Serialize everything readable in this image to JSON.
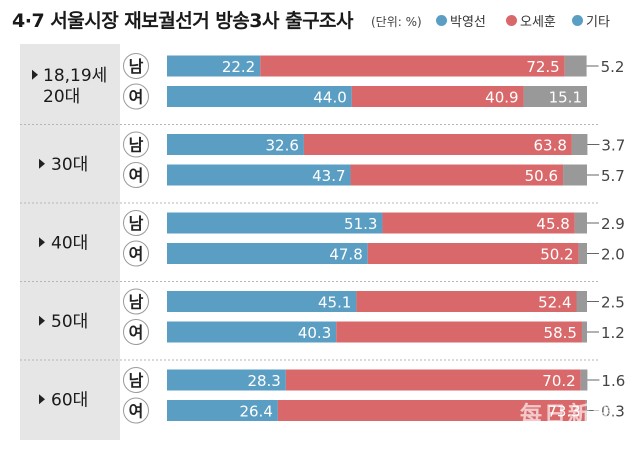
{
  "title": "4·7 서울시장 재보궐선거 방송3사 출구조사",
  "unit": "(단위: %)",
  "legend": [
    {
      "label": "박영선",
      "color": "#5a9ec4"
    },
    {
      "label": "오세훈",
      "color": "#d9686a"
    },
    {
      "label": "기타",
      "color": "#5a9ec4"
    }
  ],
  "watermark": {
    "name": "每日新聞",
    "url": "www.imaeil.com"
  },
  "chart_data": {
    "type": "bar",
    "stacked": true,
    "orientation": "horizontal",
    "xlim": [
      0,
      100
    ],
    "colors": {
      "park": "#5a9ec4",
      "oh": "#d9686a",
      "other": "#999999"
    },
    "series_names": [
      "박영선",
      "오세훈",
      "기타"
    ],
    "groups": [
      {
        "label_lines": [
          "18,19세",
          "20대"
        ],
        "rows": [
          {
            "gender": "남",
            "values": [
              22.2,
              72.5,
              5.2
            ]
          },
          {
            "gender": "여",
            "values": [
              44.0,
              40.9,
              15.1
            ]
          }
        ]
      },
      {
        "label_lines": [
          "30대"
        ],
        "rows": [
          {
            "gender": "남",
            "values": [
              32.6,
              63.8,
              3.7
            ]
          },
          {
            "gender": "여",
            "values": [
              43.7,
              50.6,
              5.7
            ]
          }
        ]
      },
      {
        "label_lines": [
          "40대"
        ],
        "rows": [
          {
            "gender": "남",
            "values": [
              51.3,
              45.8,
              2.9
            ]
          },
          {
            "gender": "여",
            "values": [
              47.8,
              50.2,
              2.0
            ]
          }
        ]
      },
      {
        "label_lines": [
          "50대"
        ],
        "rows": [
          {
            "gender": "남",
            "values": [
              45.1,
              52.4,
              2.5
            ]
          },
          {
            "gender": "여",
            "values": [
              40.3,
              58.5,
              1.2
            ]
          }
        ]
      },
      {
        "label_lines": [
          "60대"
        ],
        "rows": [
          {
            "gender": "남",
            "values": [
              28.3,
              70.2,
              1.6
            ]
          },
          {
            "gender": "여",
            "values": [
              26.4,
              73.3,
              0.3
            ]
          }
        ]
      }
    ]
  }
}
